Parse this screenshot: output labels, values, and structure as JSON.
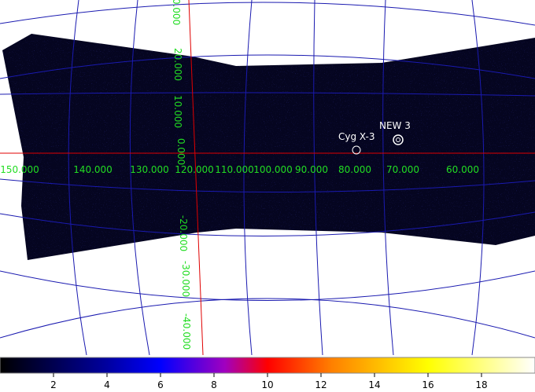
{
  "grid_labels": {
    "longitude": [
      "150.000",
      "140.000",
      "130.000",
      "120.000",
      "110.000",
      "100.000",
      "90.000",
      "80.000",
      "70.000",
      "60.000"
    ],
    "latitude": [
      "0.000",
      "20.000",
      "10.000",
      "0.000",
      "-20.000",
      "-30.000",
      "-40.000"
    ]
  },
  "sources": [
    "Cyg X-3",
    "NEW 3"
  ],
  "colorbar": {
    "range": [
      0,
      20
    ],
    "ticks": [
      2,
      4,
      6,
      8,
      10,
      12,
      14,
      16,
      18
    ]
  }
}
